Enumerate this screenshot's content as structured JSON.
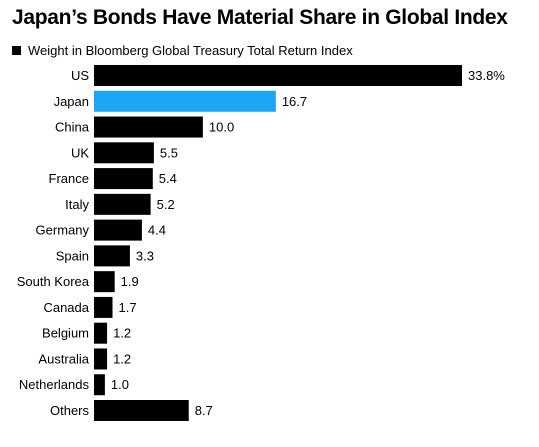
{
  "chart_data": {
    "type": "bar",
    "orientation": "horizontal",
    "title": "Japan’s Bonds Have Material Share in Global Index",
    "series": [
      {
        "name": "Weight in Bloomberg Global Treasury Total Return Index",
        "values": [
          33.8,
          16.7,
          10.0,
          5.5,
          5.4,
          5.2,
          4.4,
          3.3,
          1.9,
          1.7,
          1.2,
          1.2,
          1.0,
          8.7
        ]
      }
    ],
    "categories": [
      "US",
      "Japan",
      "China",
      "UK",
      "France",
      "Italy",
      "Germany",
      "Spain",
      "South Korea",
      "Canada",
      "Belgium",
      "Australia",
      "Netherlands",
      "Others"
    ],
    "value_labels": [
      "33.8%",
      "16.7",
      "10.0",
      "5.5",
      "5.4",
      "5.2",
      "4.4",
      "3.3",
      "1.9",
      "1.7",
      "1.2",
      "1.2",
      "1.0",
      "8.7"
    ],
    "highlight_category": "Japan",
    "xlim": [
      0,
      33.8
    ],
    "grid": false,
    "legend_position": "top-left",
    "colors": {
      "bar": "#000000",
      "highlight": "#1aa6f5",
      "legend_swatch": "#000000"
    }
  }
}
